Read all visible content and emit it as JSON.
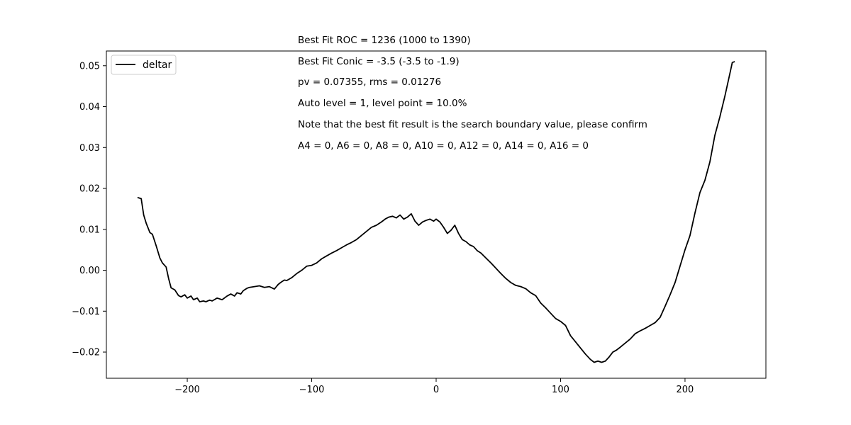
{
  "chart_data": {
    "type": "line",
    "title": "",
    "xlabel": "",
    "ylabel": "",
    "xlim": [
      -265,
      265
    ],
    "ylim": [
      -0.0264,
      0.0536
    ],
    "grid": false,
    "legend_placement": "top-left",
    "x_ticks": [
      -200,
      -100,
      0,
      100,
      200
    ],
    "x_tick_labels": [
      "−200",
      "−100",
      "0",
      "100",
      "200"
    ],
    "y_ticks": [
      -0.02,
      -0.01,
      0.0,
      0.01,
      0.02,
      0.03,
      0.04,
      0.05
    ],
    "y_tick_labels": [
      "−0.02",
      "−0.01",
      "0.00",
      "0.01",
      "0.02",
      "0.03",
      "0.04",
      "0.05"
    ],
    "annotations": [
      "Best Fit ROC = 1236  (1000 to 1390)",
      "Best Fit Conic = -3.5  (-3.5 to -1.9)",
      "pv = 0.07355, rms = 0.01276",
      "Auto level = 1, level point = 10.0%",
      "Note that the best fit result is the search boundary value, please confirm",
      "A4 = 0, A6 = 0, A8 = 0, A10 = 0, A12 = 0, A14 = 0, A16 = 0"
    ],
    "series": [
      {
        "name": "deltar",
        "color": "#000000",
        "x": [
          -240,
          -237,
          -235,
          -233,
          -230,
          -228,
          -225,
          -222,
          -220,
          -217,
          -215,
          -213,
          -210,
          -207,
          -205,
          -202,
          -200,
          -197,
          -195,
          -192,
          -190,
          -187,
          -185,
          -182,
          -180,
          -176,
          -172,
          -168,
          -165,
          -162,
          -160,
          -157,
          -155,
          -152,
          -150,
          -146,
          -142,
          -138,
          -134,
          -130,
          -127,
          -125,
          -122,
          -120,
          -116,
          -112,
          -108,
          -104,
          -100,
          -96,
          -92,
          -88,
          -84,
          -80,
          -76,
          -72,
          -68,
          -64,
          -60,
          -56,
          -52,
          -48,
          -44,
          -41,
          -38,
          -35,
          -32,
          -29,
          -26,
          -23,
          -20,
          -17,
          -14,
          -11,
          -8,
          -5,
          -2,
          0,
          3,
          6,
          9,
          12,
          15,
          18,
          21,
          24,
          27,
          30,
          33,
          36,
          40,
          44,
          48,
          52,
          56,
          60,
          64,
          68,
          72,
          76,
          80,
          84,
          88,
          92,
          96,
          100,
          104,
          108,
          112,
          116,
          120,
          124,
          127,
          130,
          133,
          136,
          139,
          142,
          145,
          148,
          152,
          156,
          160,
          164,
          168,
          172,
          176,
          180,
          184,
          188,
          192,
          196,
          200,
          204,
          208,
          212,
          216,
          220,
          224,
          228,
          232,
          236,
          238,
          240
        ],
        "y": [
          0.0178,
          0.0175,
          0.0135,
          0.0115,
          0.0092,
          0.0088,
          0.006,
          0.003,
          0.0018,
          0.0008,
          -0.002,
          -0.0043,
          -0.0048,
          -0.0062,
          -0.0065,
          -0.006,
          -0.0068,
          -0.0063,
          -0.0072,
          -0.0068,
          -0.0077,
          -0.0075,
          -0.0077,
          -0.0073,
          -0.0075,
          -0.0068,
          -0.0072,
          -0.0063,
          -0.0058,
          -0.0063,
          -0.0055,
          -0.0058,
          -0.005,
          -0.0044,
          -0.0042,
          -0.004,
          -0.0038,
          -0.0042,
          -0.004,
          -0.0046,
          -0.0035,
          -0.003,
          -0.0024,
          -0.0025,
          -0.0018,
          -0.0008,
          0.0,
          0.001,
          0.0012,
          0.0018,
          0.0028,
          0.0035,
          0.0042,
          0.0048,
          0.0055,
          0.0062,
          0.0068,
          0.0075,
          0.0085,
          0.0095,
          0.0105,
          0.011,
          0.0118,
          0.0125,
          0.013,
          0.0132,
          0.0128,
          0.0135,
          0.0125,
          0.013,
          0.0138,
          0.012,
          0.011,
          0.0118,
          0.0122,
          0.0125,
          0.012,
          0.0125,
          0.0118,
          0.0105,
          0.009,
          0.0098,
          0.011,
          0.009,
          0.0075,
          0.007,
          0.0062,
          0.0058,
          0.0048,
          0.0042,
          0.003,
          0.0018,
          0.0005,
          -0.0008,
          -0.002,
          -0.003,
          -0.0037,
          -0.004,
          -0.0045,
          -0.0055,
          -0.0062,
          -0.008,
          -0.0092,
          -0.0105,
          -0.0118,
          -0.0125,
          -0.0135,
          -0.016,
          -0.0175,
          -0.019,
          -0.0205,
          -0.0218,
          -0.0225,
          -0.0222,
          -0.0225,
          -0.0222,
          -0.0212,
          -0.02,
          -0.0195,
          -0.0188,
          -0.0178,
          -0.0168,
          -0.0155,
          -0.0148,
          -0.0142,
          -0.0135,
          -0.0128,
          -0.0115,
          -0.0088,
          -0.006,
          -0.003,
          0.001,
          0.005,
          0.0085,
          0.014,
          0.019,
          0.022,
          0.0265,
          0.033,
          0.0375,
          0.0425,
          0.048,
          0.0508,
          0.051
        ]
      }
    ]
  }
}
